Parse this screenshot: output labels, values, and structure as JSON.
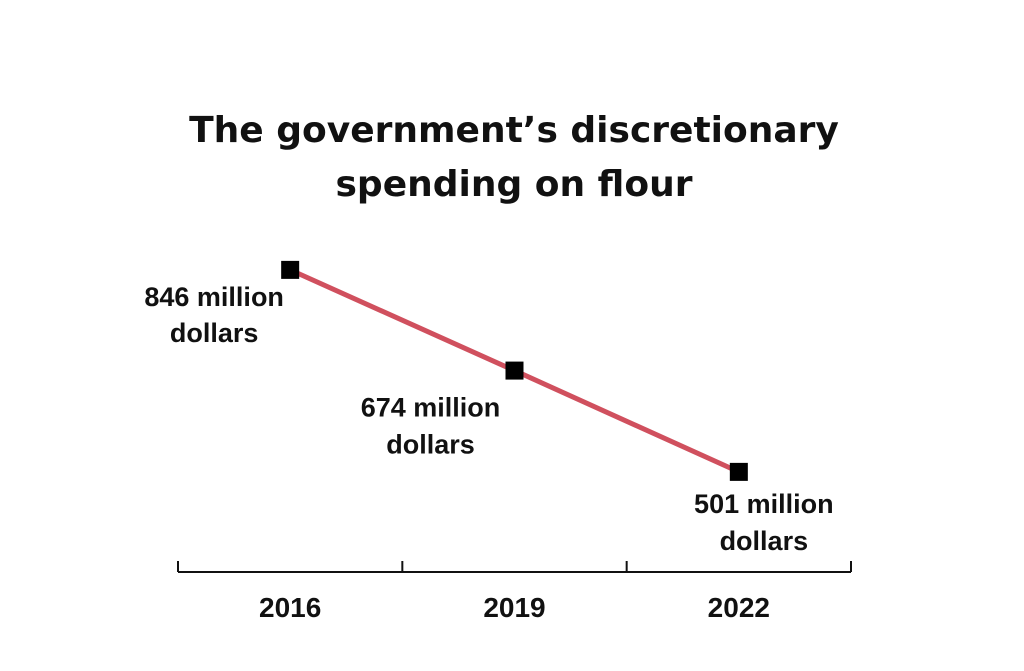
{
  "chart_data": {
    "type": "line",
    "title_lines": [
      "The government’s discretionary",
      "spending on flour"
    ],
    "x": [
      "2016",
      "2019",
      "2022"
    ],
    "series": [
      {
        "values": [
          846,
          674,
          501
        ],
        "labels": [
          [
            "846 million",
            "dollars"
          ],
          [
            "674 million",
            "dollars"
          ],
          [
            "501 million",
            "dollars"
          ]
        ]
      }
    ],
    "ylim": [
      330,
      1020
    ],
    "grid": false,
    "colors": {
      "line": "#d0505e",
      "marker": "#000000",
      "axis": "#111111"
    }
  }
}
